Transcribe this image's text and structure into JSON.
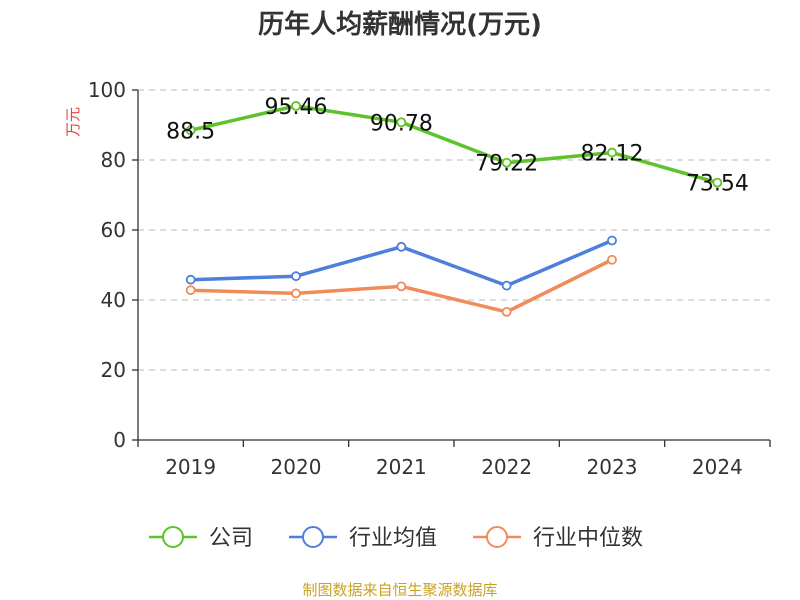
{
  "chart_data": {
    "type": "line",
    "title": "历年人均薪酬情况(万元)",
    "ylabel": "万元",
    "categories": [
      "2019",
      "2020",
      "2021",
      "2022",
      "2023",
      "2024"
    ],
    "ylim": [
      0,
      100
    ],
    "yticks": [
      0,
      20,
      40,
      60,
      80,
      100
    ],
    "grid": true,
    "legend_position": "bottom",
    "series": [
      {
        "name": "公司",
        "color": "#5ec22b",
        "values": [
          88.5,
          95.46,
          90.78,
          79.22,
          82.12,
          73.54
        ],
        "data_labels": [
          "88.5",
          "95.46",
          "90.78",
          "79.22",
          "82.12",
          "73.54"
        ]
      },
      {
        "name": "行业均值",
        "color": "#4f7fdc",
        "values": [
          45.8,
          46.8,
          55.2,
          44.1,
          57.0,
          null
        ]
      },
      {
        "name": "行业中位数",
        "color": "#f28b5a",
        "values": [
          42.8,
          41.9,
          43.9,
          36.6,
          51.5,
          null
        ]
      }
    ],
    "ylabel_color": "#e8413c"
  },
  "source_text": "制图数据来自恒生聚源数据库",
  "source_color": "#c9a227"
}
